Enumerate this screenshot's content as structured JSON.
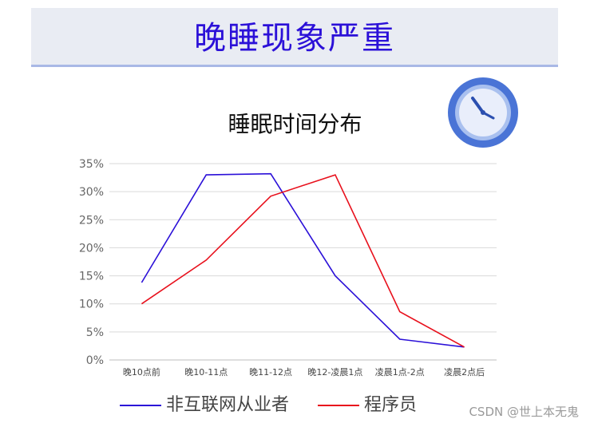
{
  "header": {
    "title": "晚睡现象严重"
  },
  "icons": {
    "clock": "clock-icon"
  },
  "chart_data": {
    "type": "line",
    "title": "睡眠时间分布",
    "xlabel": "",
    "ylabel": "",
    "categories": [
      "晚10点前",
      "晚10-11点",
      "晚11-12点",
      "晚12-凌晨1点",
      "凌晨1点-2点",
      "凌晨2点后"
    ],
    "yticks": [
      "0%",
      "5%",
      "10%",
      "15%",
      "20%",
      "25%",
      "30%",
      "35%"
    ],
    "ylim": [
      0,
      35
    ],
    "grid": true,
    "legend_position": "bottom",
    "series": [
      {
        "name": "非互联网从业者",
        "color": "#2b10d8",
        "values": [
          13.8,
          33.0,
          33.2,
          15.0,
          3.7,
          2.3
        ]
      },
      {
        "name": "程序员",
        "color": "#e8101c",
        "values": [
          10.0,
          17.8,
          29.2,
          33.0,
          8.6,
          2.3
        ]
      }
    ]
  },
  "watermark": "CSDN @世上本无鬼"
}
